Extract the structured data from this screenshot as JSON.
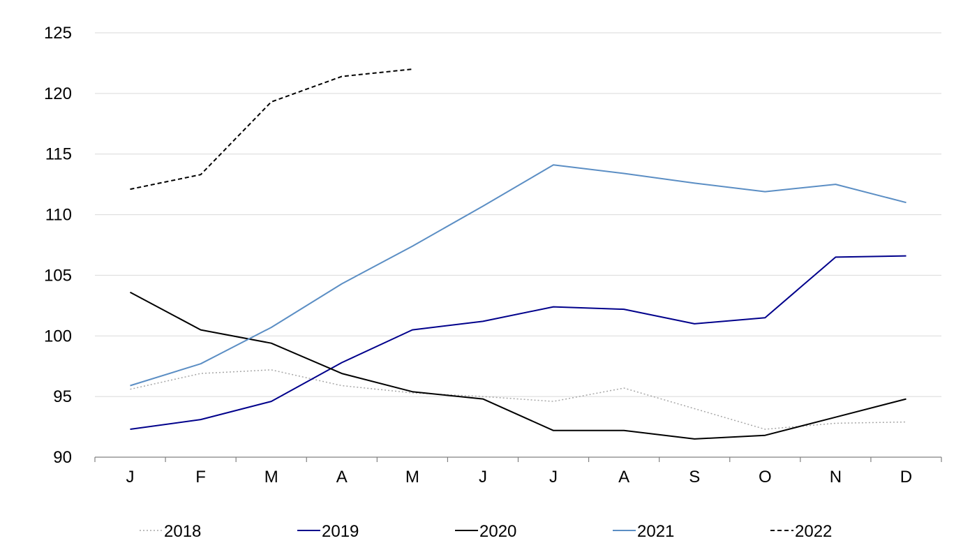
{
  "chart_data": {
    "type": "line",
    "title": "",
    "xlabel": "",
    "ylabel": "",
    "categories": [
      "J",
      "F",
      "M",
      "A",
      "M",
      "J",
      "J",
      "A",
      "S",
      "O",
      "N",
      "D"
    ],
    "ylim": [
      90,
      125
    ],
    "yticks": [
      90,
      95,
      100,
      105,
      110,
      115,
      120,
      125
    ],
    "grid": "horizontal",
    "legend_position": "bottom",
    "series": [
      {
        "name": "2018",
        "color": "#a6a6a6",
        "style": "dotted",
        "values": [
          95.6,
          96.9,
          97.2,
          95.9,
          95.3,
          95.0,
          94.6,
          95.7,
          94.0,
          92.3,
          92.8,
          92.9
        ]
      },
      {
        "name": "2019",
        "color": "#00008b",
        "style": "solid",
        "values": [
          92.3,
          93.1,
          94.6,
          97.8,
          100.5,
          101.2,
          102.4,
          102.2,
          101.0,
          101.5,
          106.5,
          106.6
        ]
      },
      {
        "name": "2020",
        "color": "#000000",
        "style": "solid",
        "values": [
          103.6,
          100.5,
          99.4,
          96.9,
          95.4,
          94.8,
          92.2,
          92.2,
          91.5,
          91.8,
          93.3,
          94.8
        ]
      },
      {
        "name": "2021",
        "color": "#5b8ec4",
        "style": "solid",
        "values": [
          95.9,
          97.7,
          100.7,
          104.3,
          107.4,
          110.7,
          114.1,
          113.4,
          112.6,
          111.9,
          112.5,
          111.0
        ]
      },
      {
        "name": "2022",
        "color": "#000000",
        "style": "dashed",
        "values": [
          112.1,
          113.3,
          119.3,
          121.4,
          122.0,
          null,
          null,
          null,
          null,
          null,
          null,
          null
        ]
      }
    ]
  }
}
